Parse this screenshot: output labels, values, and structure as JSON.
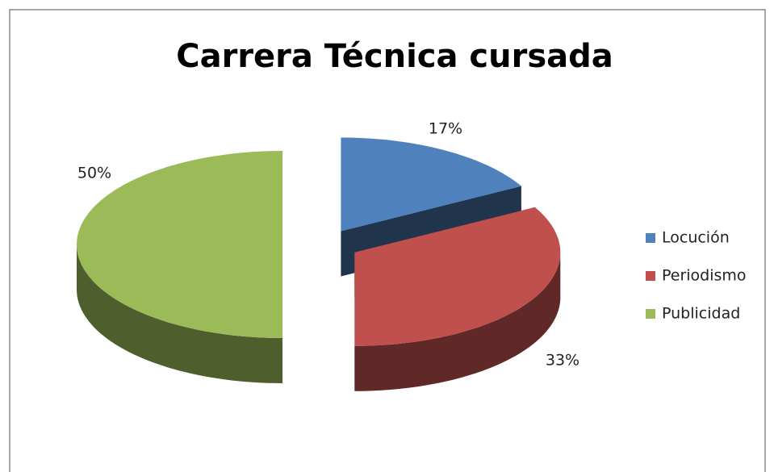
{
  "chart_data": {
    "type": "pie3d",
    "title": "Carrera Técnica cursada",
    "categories": [
      "Locución",
      "Periodismo",
      "Publicidad"
    ],
    "values": [
      17,
      33,
      50
    ],
    "value_labels": [
      "17%",
      "33%",
      "50%"
    ],
    "colors": [
      "#4f81bd",
      "#c0504d",
      "#9bbb59"
    ],
    "legend": "right"
  }
}
